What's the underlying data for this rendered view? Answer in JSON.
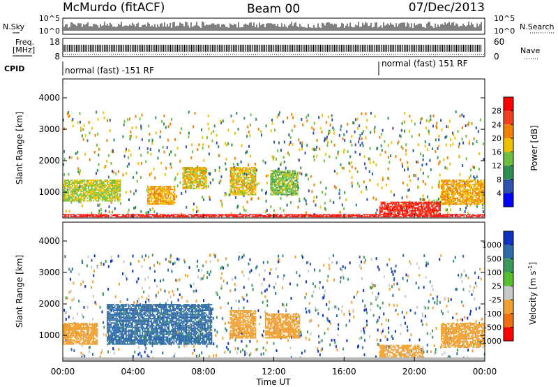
{
  "header": {
    "station": "McMurdo (fitACF)",
    "beam": "Beam 00",
    "date": "07/Dec/2013"
  },
  "noise_panel": {
    "left_label": "N.Sky",
    "right_label": "N.Search",
    "yticks_left": [
      "10^5",
      "10^0"
    ],
    "yticks_right": [
      "10^5",
      "10^0"
    ],
    "scale": "log"
  },
  "freq_panel": {
    "left_label_line1": "Freq.",
    "left_label_line2": "[MHz]",
    "yticks_left": [
      "18",
      "8"
    ],
    "right_label": "Nave",
    "yticks_right": [
      "60",
      "0"
    ]
  },
  "cpid_panel": {
    "label": "CPID",
    "segments": [
      {
        "text": "normal (fast) -151 RF",
        "start": "00:00",
        "end": "18:00"
      },
      {
        "text": "normal (fast) 151 RF",
        "start": "18:00",
        "end": "24:00"
      }
    ]
  },
  "colors": {
    "power_scale": [
      "#0000ff",
      "#3050b0",
      "#2f8f55",
      "#70c040",
      "#f0c000",
      "#f08000",
      "#f04020",
      "#ff0000"
    ],
    "velocity_scale": [
      "#1030c0",
      "#2f6aa8",
      "#3c9a5c",
      "#55c030",
      "#c8c8c8",
      "#f0a030",
      "#f07010",
      "#ff0000"
    ],
    "ground_scatter": "#b8b8b8"
  },
  "chart_data": [
    {
      "type": "heatmap",
      "panel": "power",
      "xlabel": "",
      "ylabel": "Slant Range [km]",
      "xlim": [
        "00:00",
        "24:00"
      ],
      "ylim": [
        180,
        4600
      ],
      "ytick_labels": [
        "1000",
        "2000",
        "3000",
        "4000"
      ],
      "colorbar_label": "Power [dB]",
      "colorbar_ticks": [
        "4",
        "8",
        "12",
        "16",
        "20",
        "24",
        "28"
      ],
      "colorbar_range": [
        0,
        32
      ],
      "regions": [
        {
          "t": [
            0.0,
            3.3
          ],
          "r": [
            700,
            1400
          ],
          "value": 16
        },
        {
          "t": [
            4.8,
            6.4
          ],
          "r": [
            600,
            1200
          ],
          "value": 20
        },
        {
          "t": [
            6.8,
            8.2
          ],
          "r": [
            1100,
            1800
          ],
          "value": 18
        },
        {
          "t": [
            9.5,
            11.0
          ],
          "r": [
            900,
            1800
          ],
          "value": 18
        },
        {
          "t": [
            11.8,
            13.4
          ],
          "r": [
            900,
            1700
          ],
          "value": 14
        },
        {
          "t": [
            18.0,
            21.5
          ],
          "r": [
            300,
            700
          ],
          "value": 28
        },
        {
          "t": [
            21.5,
            24.0
          ],
          "r": [
            600,
            1400
          ],
          "value": 20
        },
        {
          "t": [
            0.0,
            24.0
          ],
          "r": [
            200,
            300
          ],
          "value": 30
        }
      ]
    },
    {
      "type": "heatmap",
      "panel": "velocity",
      "xlabel": "Time UT",
      "ylabel": "Slant Range [km]",
      "xlim": [
        "00:00",
        "24:00"
      ],
      "ylim": [
        180,
        4600
      ],
      "xtick_labels": [
        "00:00",
        "04:00",
        "08:00",
        "12:00",
        "16:00",
        "20:00",
        "00:00"
      ],
      "ytick_labels": [
        "1000",
        "2000",
        "3000",
        "4000"
      ],
      "colorbar_label": "Velocity [m s^-1]",
      "colorbar_ticks": [
        "1000",
        "500",
        "100",
        "25",
        "-25",
        "-100",
        "-500",
        "-1000"
      ],
      "regions": [
        {
          "t": [
            0.0,
            2.0
          ],
          "r": [
            700,
            1400
          ],
          "value": -200
        },
        {
          "t": [
            2.5,
            8.5
          ],
          "r": [
            700,
            2000
          ],
          "value": 150
        },
        {
          "t": [
            9.5,
            11.0
          ],
          "r": [
            900,
            1800
          ],
          "value": -300
        },
        {
          "t": [
            11.5,
            13.5
          ],
          "r": [
            900,
            1700
          ],
          "value": -200
        },
        {
          "t": [
            18.0,
            20.5
          ],
          "r": [
            300,
            700
          ],
          "value": -150
        },
        {
          "t": [
            21.5,
            24.0
          ],
          "r": [
            600,
            1400
          ],
          "value": -400
        },
        {
          "t": [
            0.0,
            24.0
          ],
          "r": [
            200,
            300
          ],
          "value": 0
        }
      ]
    }
  ]
}
